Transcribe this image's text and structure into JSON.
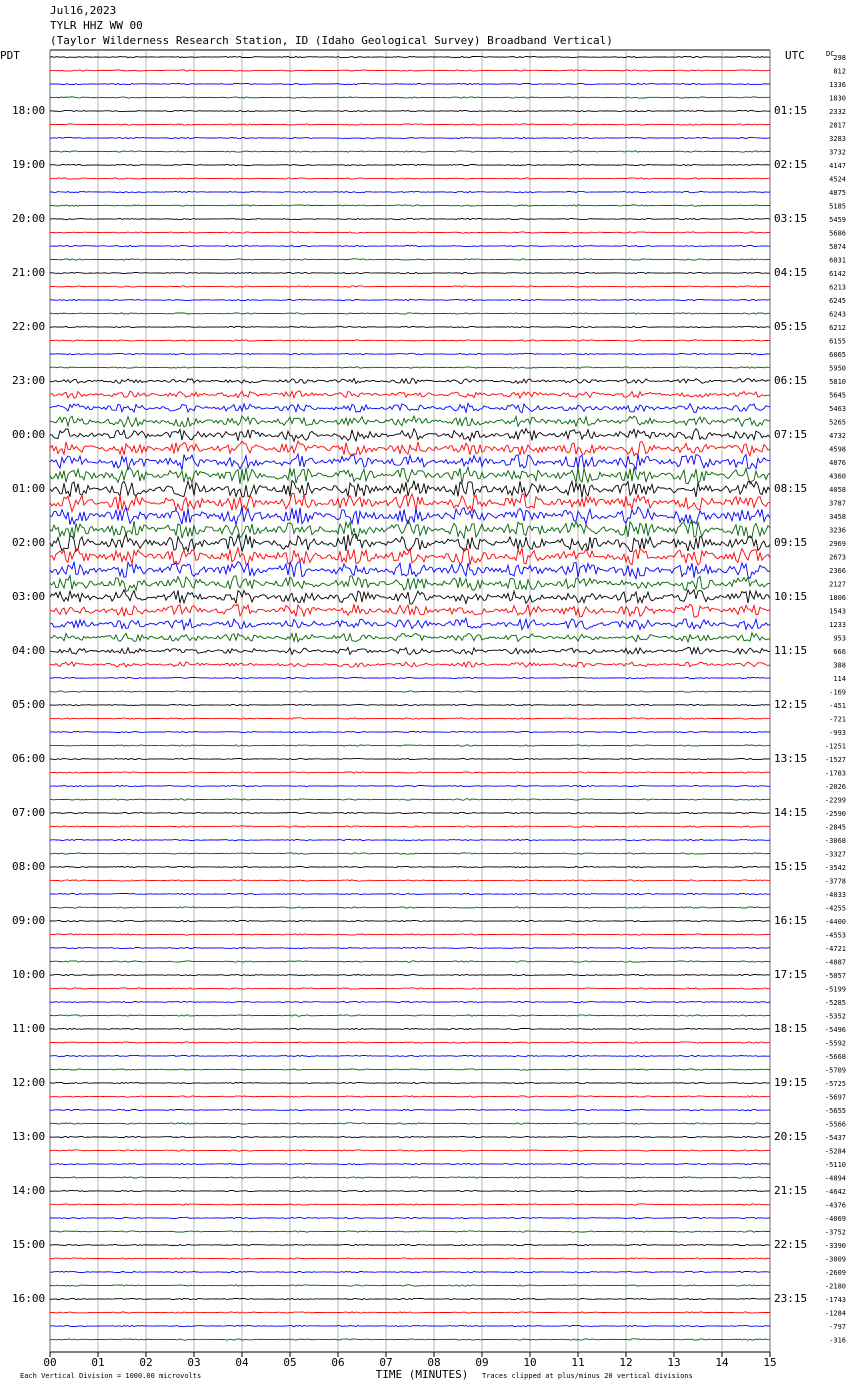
{
  "chart_data": {
    "type": "helicorder",
    "title": "Jul16,2023",
    "subtitle": "TYLR HHZ WW 00",
    "description": "(Taylor Wilderness Research Station, ID (Idaho Geological Survey) Broadband Vertical)",
    "left_timezone": "PDT",
    "right_timezone": "UTC",
    "offset_header": "DC",
    "x_label": "TIME (MINUTES)",
    "scale_note": "Each Vertical Division = 1000.00 microvolts",
    "clip_note": "Traces clipped at plus/minus 20 vertical divisions",
    "xlim": [
      0,
      15
    ],
    "xticks": [
      {
        "value": 0,
        "label": "00"
      },
      {
        "value": 1,
        "label": "01"
      },
      {
        "value": 2,
        "label": "02"
      },
      {
        "value": 3,
        "label": "03"
      },
      {
        "value": 4,
        "label": "04"
      },
      {
        "value": 5,
        "label": "05"
      },
      {
        "value": 6,
        "label": "06"
      },
      {
        "value": 7,
        "label": "07"
      },
      {
        "value": 8,
        "label": "08"
      },
      {
        "value": 9,
        "label": "09"
      },
      10,
      11,
      12,
      13,
      14,
      15
    ],
    "trace_colors": [
      "#000000",
      "#ff0000",
      "#0000ff",
      "#006400"
    ],
    "left_hours": [
      "18:00",
      "19:00",
      "20:00",
      "21:00",
      "22:00",
      "23:00",
      "00:00",
      "01:00",
      "02:00",
      "03:00",
      "04:00",
      "05:00",
      "06:00",
      "07:00",
      "08:00",
      "09:00",
      "10:00",
      "11:00",
      "12:00",
      "13:00",
      "14:00",
      "15:00",
      "16:00"
    ],
    "right_hours": [
      "01:15",
      "02:15",
      "03:15",
      "04:15",
      "05:15",
      "06:15",
      "07:15",
      "08:15",
      "09:15",
      "10:15",
      "11:15",
      "12:15",
      "13:15",
      "14:15",
      "15:15",
      "16:15",
      "17:15",
      "18:15",
      "19:15",
      "20:15",
      "21:15",
      "22:15",
      "23:15"
    ],
    "dc_offsets": [
      298,
      812,
      1336,
      1830,
      2332,
      2817,
      3283,
      3732,
      4147,
      4524,
      4875,
      5185,
      5459,
      5686,
      5874,
      6031,
      6142,
      6213,
      6245,
      6243,
      6212,
      6155,
      6065,
      5950,
      5810,
      5645,
      5463,
      5265,
      4732,
      4598,
      4876,
      4360,
      4058,
      3787,
      3458,
      3236,
      2969,
      2673,
      2366,
      2127,
      1806,
      1543,
      1233,
      953,
      666,
      388,
      114,
      -169,
      -451,
      -721,
      -993,
      -1251,
      -1527,
      -1783,
      -2026,
      -2299,
      -2590,
      -2845,
      -3068,
      -3327,
      -3542,
      -3778,
      -4033,
      -4255,
      -4400,
      -4553,
      -4721,
      -4887,
      -5057,
      -5199,
      -5285,
      -5352,
      -5496,
      -5592,
      -5668,
      -5709,
      -5725,
      -5697,
      -5655,
      -5566,
      -5437,
      -5284,
      -5110,
      -4894,
      -4642,
      -4376,
      -4069,
      -3752,
      -3390,
      -3009,
      -2609,
      -2180,
      -1743,
      -1284,
      -797,
      -316
    ]
  }
}
